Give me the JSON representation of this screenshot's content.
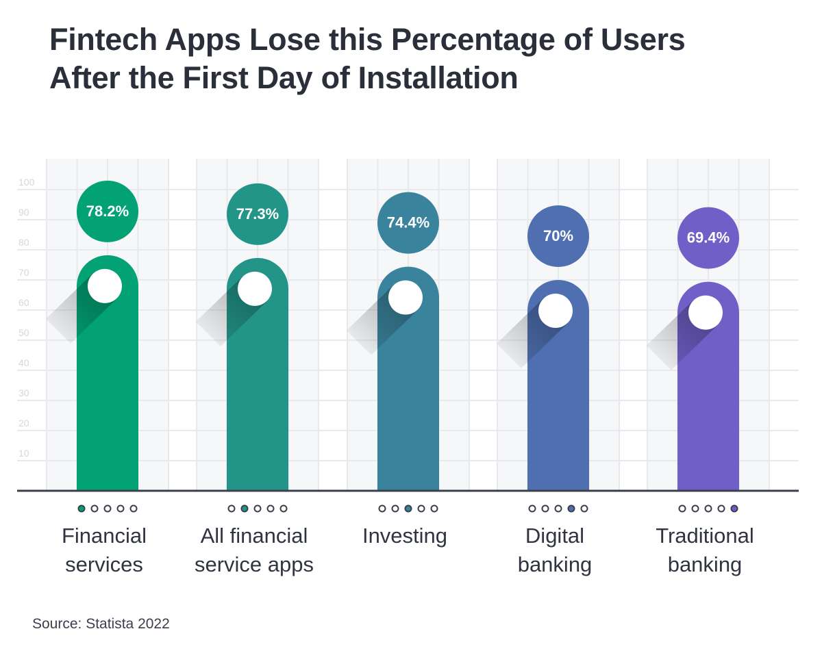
{
  "title_lines": [
    "Fintech Apps Lose this Percentage of Users",
    "After the First Day of Installation"
  ],
  "source": "Source: Statista 2022",
  "chart_data": {
    "type": "bar",
    "title": "Fintech Apps Lose this Percentage of Users After the First Day of Installation",
    "categories": [
      [
        "Financial",
        "services"
      ],
      [
        "All financial",
        "service apps"
      ],
      [
        "Investing"
      ],
      [
        "Digital",
        "banking"
      ],
      [
        "Traditional",
        "banking"
      ]
    ],
    "values": [
      78.2,
      77.3,
      74.4,
      70,
      69.4
    ],
    "data_labels": [
      "78.2%",
      "77.3%",
      "74.4%",
      "70%",
      "69.4%"
    ],
    "colors": [
      "#02a274",
      "#229488",
      "#3a839c",
      "#4f6fb0",
      "#6f5fc6"
    ],
    "yticks": [
      "10",
      "20",
      "30",
      "40",
      "50",
      "60",
      "70",
      "80",
      "90",
      "100"
    ],
    "ylim": [
      0,
      100
    ],
    "grid": true,
    "xlabel": "",
    "ylabel": ""
  }
}
